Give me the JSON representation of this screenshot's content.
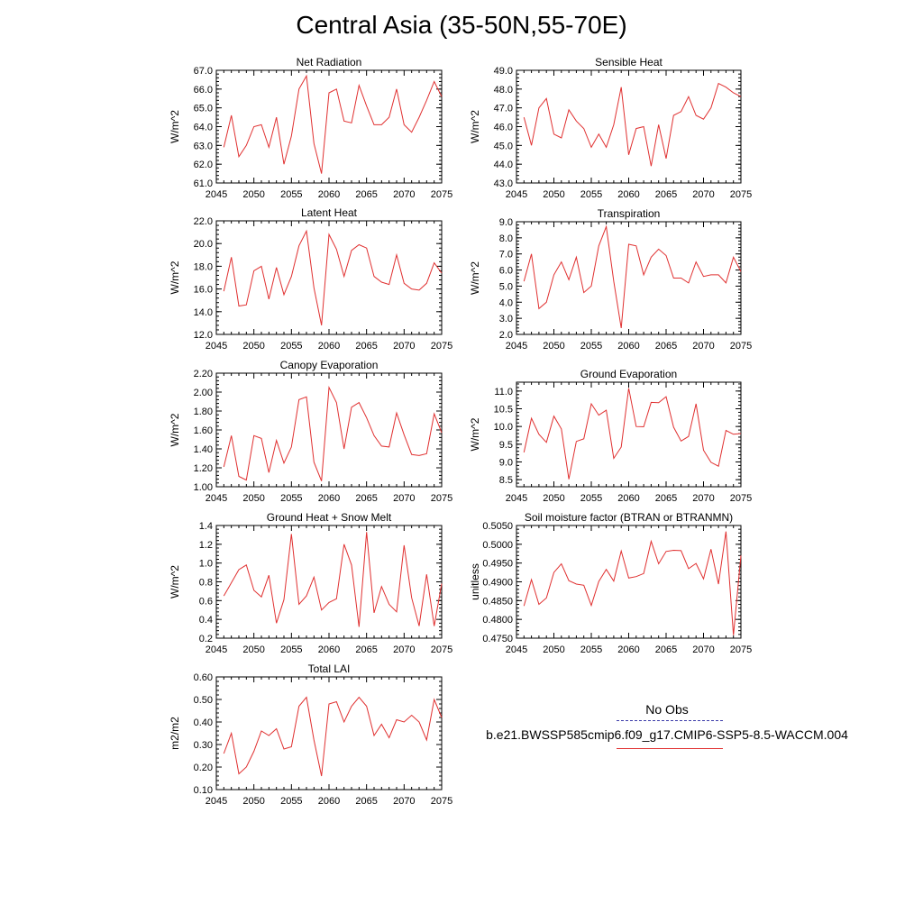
{
  "title": "Central Asia (35-50N,55-70E)",
  "legend": {
    "obs_label": "No Obs",
    "obs_color": "#3a3aa8",
    "case_label": "b.e21.BWSSP585cmip6.f09_g17.CMIP6-SSP5-8.5-WACCM.004",
    "case_color": "#e03030"
  },
  "chart_data": [
    {
      "type": "line",
      "title": "Net Radiation",
      "ylabel": "W/m^2",
      "xlim": [
        2045,
        2075
      ],
      "ylim": [
        61.0,
        67.0
      ],
      "xticks": [
        2045,
        2050,
        2055,
        2060,
        2065,
        2070,
        2075
      ],
      "yticks": [
        "61.0",
        "62.0",
        "63.0",
        "64.0",
        "65.0",
        "66.0",
        "67.0"
      ],
      "series": [
        {
          "color": "#e03030",
          "x": [
            2046,
            2047,
            2048,
            2049,
            2050,
            2051,
            2052,
            2053,
            2054,
            2055,
            2056,
            2057,
            2058,
            2059,
            2060,
            2061,
            2062,
            2063,
            2064,
            2065,
            2066,
            2067,
            2068,
            2069,
            2070,
            2071,
            2072,
            2073,
            2074,
            2075
          ],
          "y": [
            62.9,
            64.6,
            62.4,
            63.0,
            64.0,
            64.1,
            62.9,
            64.5,
            62.0,
            63.5,
            66.0,
            66.7,
            63.1,
            61.5,
            65.8,
            66.0,
            64.3,
            64.2,
            66.2,
            65.1,
            64.1,
            64.1,
            64.5,
            66.0,
            64.1,
            63.7,
            64.5,
            65.4,
            66.4,
            65.6
          ]
        }
      ]
    },
    {
      "type": "line",
      "title": "Sensible Heat",
      "ylabel": "W/m^2",
      "xlim": [
        2045,
        2075
      ],
      "ylim": [
        43.0,
        49.0
      ],
      "xticks": [
        2045,
        2050,
        2055,
        2060,
        2065,
        2070,
        2075
      ],
      "yticks": [
        "43.0",
        "44.0",
        "45.0",
        "46.0",
        "47.0",
        "48.0",
        "49.0"
      ],
      "series": [
        {
          "color": "#e03030",
          "x": [
            2046,
            2047,
            2048,
            2049,
            2050,
            2051,
            2052,
            2053,
            2054,
            2055,
            2056,
            2057,
            2058,
            2059,
            2060,
            2061,
            2062,
            2063,
            2064,
            2065,
            2066,
            2067,
            2068,
            2069,
            2070,
            2071,
            2072,
            2073,
            2074,
            2075
          ],
          "y": [
            46.5,
            45.0,
            47.0,
            47.5,
            45.6,
            45.4,
            46.9,
            46.3,
            45.9,
            44.9,
            45.6,
            44.9,
            46.1,
            48.1,
            44.5,
            45.9,
            46.0,
            43.9,
            46.1,
            44.3,
            46.6,
            46.8,
            47.6,
            46.6,
            46.4,
            47.0,
            48.3,
            48.1,
            47.8,
            47.6
          ]
        }
      ]
    },
    {
      "type": "line",
      "title": "Latent Heat",
      "ylabel": "W/m^2",
      "xlim": [
        2045,
        2075
      ],
      "ylim": [
        12.0,
        22.0
      ],
      "xticks": [
        2045,
        2050,
        2055,
        2060,
        2065,
        2070,
        2075
      ],
      "yticks": [
        "12.0",
        "14.0",
        "16.0",
        "18.0",
        "20.0",
        "22.0"
      ],
      "series": [
        {
          "color": "#e03030",
          "x": [
            2046,
            2047,
            2048,
            2049,
            2050,
            2051,
            2052,
            2053,
            2054,
            2055,
            2056,
            2057,
            2058,
            2059,
            2060,
            2061,
            2062,
            2063,
            2064,
            2065,
            2066,
            2067,
            2068,
            2069,
            2070,
            2071,
            2072,
            2073,
            2074,
            2075
          ],
          "y": [
            15.8,
            18.8,
            14.5,
            14.6,
            17.6,
            18.0,
            15.1,
            17.9,
            15.5,
            17.1,
            19.8,
            21.1,
            16.1,
            12.8,
            20.8,
            19.5,
            17.1,
            19.4,
            19.9,
            19.6,
            17.1,
            16.6,
            16.4,
            19.0,
            16.5,
            16.0,
            15.9,
            16.5,
            18.3,
            17.4
          ]
        }
      ]
    },
    {
      "type": "line",
      "title": "Transpiration",
      "ylabel": "W/m^2",
      "xlim": [
        2045,
        2075
      ],
      "ylim": [
        2.0,
        9.0
      ],
      "xticks": [
        2045,
        2050,
        2055,
        2060,
        2065,
        2070,
        2075
      ],
      "yticks": [
        "2.0",
        "3.0",
        "4.0",
        "5.0",
        "6.0",
        "7.0",
        "8.0",
        "9.0"
      ],
      "series": [
        {
          "color": "#e03030",
          "x": [
            2046,
            2047,
            2048,
            2049,
            2050,
            2051,
            2052,
            2053,
            2054,
            2055,
            2056,
            2057,
            2058,
            2059,
            2060,
            2061,
            2062,
            2063,
            2064,
            2065,
            2066,
            2067,
            2068,
            2069,
            2070,
            2071,
            2072,
            2073,
            2074,
            2075
          ],
          "y": [
            5.3,
            7.0,
            3.6,
            4.0,
            5.7,
            6.5,
            5.4,
            6.8,
            4.6,
            5.0,
            7.5,
            8.7,
            5.3,
            2.4,
            7.6,
            7.5,
            5.7,
            6.8,
            7.3,
            6.9,
            5.5,
            5.5,
            5.2,
            6.5,
            5.6,
            5.7,
            5.7,
            5.2,
            6.8,
            5.9
          ]
        }
      ]
    },
    {
      "type": "line",
      "title": "Canopy Evaporation",
      "ylabel": "W/m^2",
      "xlim": [
        2045,
        2075
      ],
      "ylim": [
        1.0,
        2.2
      ],
      "xticks": [
        2045,
        2050,
        2055,
        2060,
        2065,
        2070,
        2075
      ],
      "yticks": [
        "1.00",
        "1.20",
        "1.40",
        "1.60",
        "1.80",
        "2.00",
        "2.20"
      ],
      "series": [
        {
          "color": "#e03030",
          "x": [
            2046,
            2047,
            2048,
            2049,
            2050,
            2051,
            2052,
            2053,
            2054,
            2055,
            2056,
            2057,
            2058,
            2059,
            2060,
            2061,
            2062,
            2063,
            2064,
            2065,
            2066,
            2067,
            2068,
            2069,
            2070,
            2071,
            2072,
            2073,
            2074,
            2075
          ],
          "y": [
            1.21,
            1.54,
            1.11,
            1.07,
            1.54,
            1.51,
            1.15,
            1.49,
            1.25,
            1.42,
            1.92,
            1.95,
            1.26,
            1.06,
            2.05,
            1.89,
            1.4,
            1.84,
            1.89,
            1.73,
            1.54,
            1.43,
            1.42,
            1.78,
            1.55,
            1.34,
            1.33,
            1.35,
            1.77,
            1.57
          ]
        }
      ]
    },
    {
      "type": "line",
      "title": "Ground Evaporation",
      "ylabel": "W/m^2",
      "xlim": [
        2045,
        2075
      ],
      "ylim": [
        8.3,
        11.25
      ],
      "xticks": [
        2045,
        2050,
        2055,
        2060,
        2065,
        2070,
        2075
      ],
      "yticks": [
        "8.5",
        "9.0",
        "9.5",
        "10.0",
        "10.5",
        "11.0"
      ],
      "series": [
        {
          "color": "#e03030",
          "x": [
            2046,
            2047,
            2048,
            2049,
            2050,
            2051,
            2052,
            2053,
            2054,
            2055,
            2056,
            2057,
            2058,
            2059,
            2060,
            2061,
            2062,
            2063,
            2064,
            2065,
            2066,
            2067,
            2068,
            2069,
            2070,
            2071,
            2072,
            2073,
            2074,
            2075
          ],
          "y": [
            9.27,
            10.23,
            9.78,
            9.55,
            10.29,
            9.93,
            8.51,
            9.58,
            9.65,
            10.64,
            10.32,
            10.46,
            9.1,
            9.42,
            11.08,
            10.0,
            9.99,
            10.68,
            10.67,
            10.84,
            9.98,
            9.59,
            9.72,
            10.64,
            9.33,
            8.99,
            8.88,
            9.89,
            9.78,
            9.8
          ]
        }
      ]
    },
    {
      "type": "line",
      "title": "Ground Heat + Snow Melt",
      "ylabel": "W/m^2",
      "xlim": [
        2045,
        2075
      ],
      "ylim": [
        0.2,
        1.4
      ],
      "xticks": [
        2045,
        2050,
        2055,
        2060,
        2065,
        2070,
        2075
      ],
      "yticks": [
        "0.2",
        "0.4",
        "0.6",
        "0.8",
        "1.0",
        "1.2",
        "1.4"
      ],
      "series": [
        {
          "color": "#e03030",
          "x": [
            2046,
            2047,
            2048,
            2049,
            2050,
            2051,
            2052,
            2053,
            2054,
            2055,
            2056,
            2057,
            2058,
            2059,
            2060,
            2061,
            2062,
            2063,
            2064,
            2065,
            2066,
            2067,
            2068,
            2069,
            2070,
            2071,
            2072,
            2073,
            2074,
            2075
          ],
          "y": [
            0.65,
            0.79,
            0.93,
            0.98,
            0.71,
            0.64,
            0.87,
            0.36,
            0.61,
            1.31,
            0.56,
            0.65,
            0.85,
            0.5,
            0.58,
            0.62,
            1.2,
            0.98,
            0.32,
            1.33,
            0.47,
            0.75,
            0.56,
            0.48,
            1.19,
            0.63,
            0.33,
            0.88,
            0.33,
            0.78
          ]
        }
      ]
    },
    {
      "type": "line",
      "title": "Soil moisture factor (BTRAN or BTRANMN)",
      "ylabel": "unitless",
      "xlim": [
        2045,
        2075
      ],
      "ylim": [
        0.475,
        0.505
      ],
      "xticks": [
        2045,
        2050,
        2055,
        2060,
        2065,
        2070,
        2075
      ],
      "yticks": [
        "0.4750",
        "0.4800",
        "0.4850",
        "0.4900",
        "0.4950",
        "0.5000",
        "0.5050"
      ],
      "series": [
        {
          "color": "#e03030",
          "x": [
            2046,
            2047,
            2048,
            2049,
            2050,
            2051,
            2052,
            2053,
            2054,
            2055,
            2056,
            2057,
            2058,
            2059,
            2060,
            2061,
            2062,
            2063,
            2064,
            2065,
            2066,
            2067,
            2068,
            2069,
            2070,
            2071,
            2072,
            2073,
            2074,
            2075
          ],
          "y": [
            0.4836,
            0.4906,
            0.484,
            0.4857,
            0.4925,
            0.4948,
            0.4903,
            0.4894,
            0.4891,
            0.4837,
            0.4901,
            0.4933,
            0.4902,
            0.4982,
            0.491,
            0.4914,
            0.4922,
            0.5008,
            0.4948,
            0.4981,
            0.4984,
            0.4983,
            0.4935,
            0.4949,
            0.4908,
            0.4987,
            0.4894,
            0.5034,
            0.4758,
            0.497
          ]
        }
      ]
    },
    {
      "type": "line",
      "title": "Total LAI",
      "ylabel": "m2/m2",
      "xlim": [
        2045,
        2075
      ],
      "ylim": [
        0.1,
        0.6
      ],
      "xticks": [
        2045,
        2050,
        2055,
        2060,
        2065,
        2070,
        2075
      ],
      "yticks": [
        "0.10",
        "0.20",
        "0.30",
        "0.40",
        "0.50",
        "0.60"
      ],
      "series": [
        {
          "color": "#e03030",
          "x": [
            2046,
            2047,
            2048,
            2049,
            2050,
            2051,
            2052,
            2053,
            2054,
            2055,
            2056,
            2057,
            2058,
            2059,
            2060,
            2061,
            2062,
            2063,
            2064,
            2065,
            2066,
            2067,
            2068,
            2069,
            2070,
            2071,
            2072,
            2073,
            2074,
            2075
          ],
          "y": [
            0.26,
            0.35,
            0.17,
            0.2,
            0.27,
            0.36,
            0.34,
            0.37,
            0.28,
            0.29,
            0.47,
            0.51,
            0.32,
            0.16,
            0.48,
            0.49,
            0.4,
            0.47,
            0.51,
            0.47,
            0.34,
            0.39,
            0.33,
            0.41,
            0.4,
            0.43,
            0.4,
            0.32,
            0.5,
            0.42
          ]
        }
      ]
    }
  ]
}
